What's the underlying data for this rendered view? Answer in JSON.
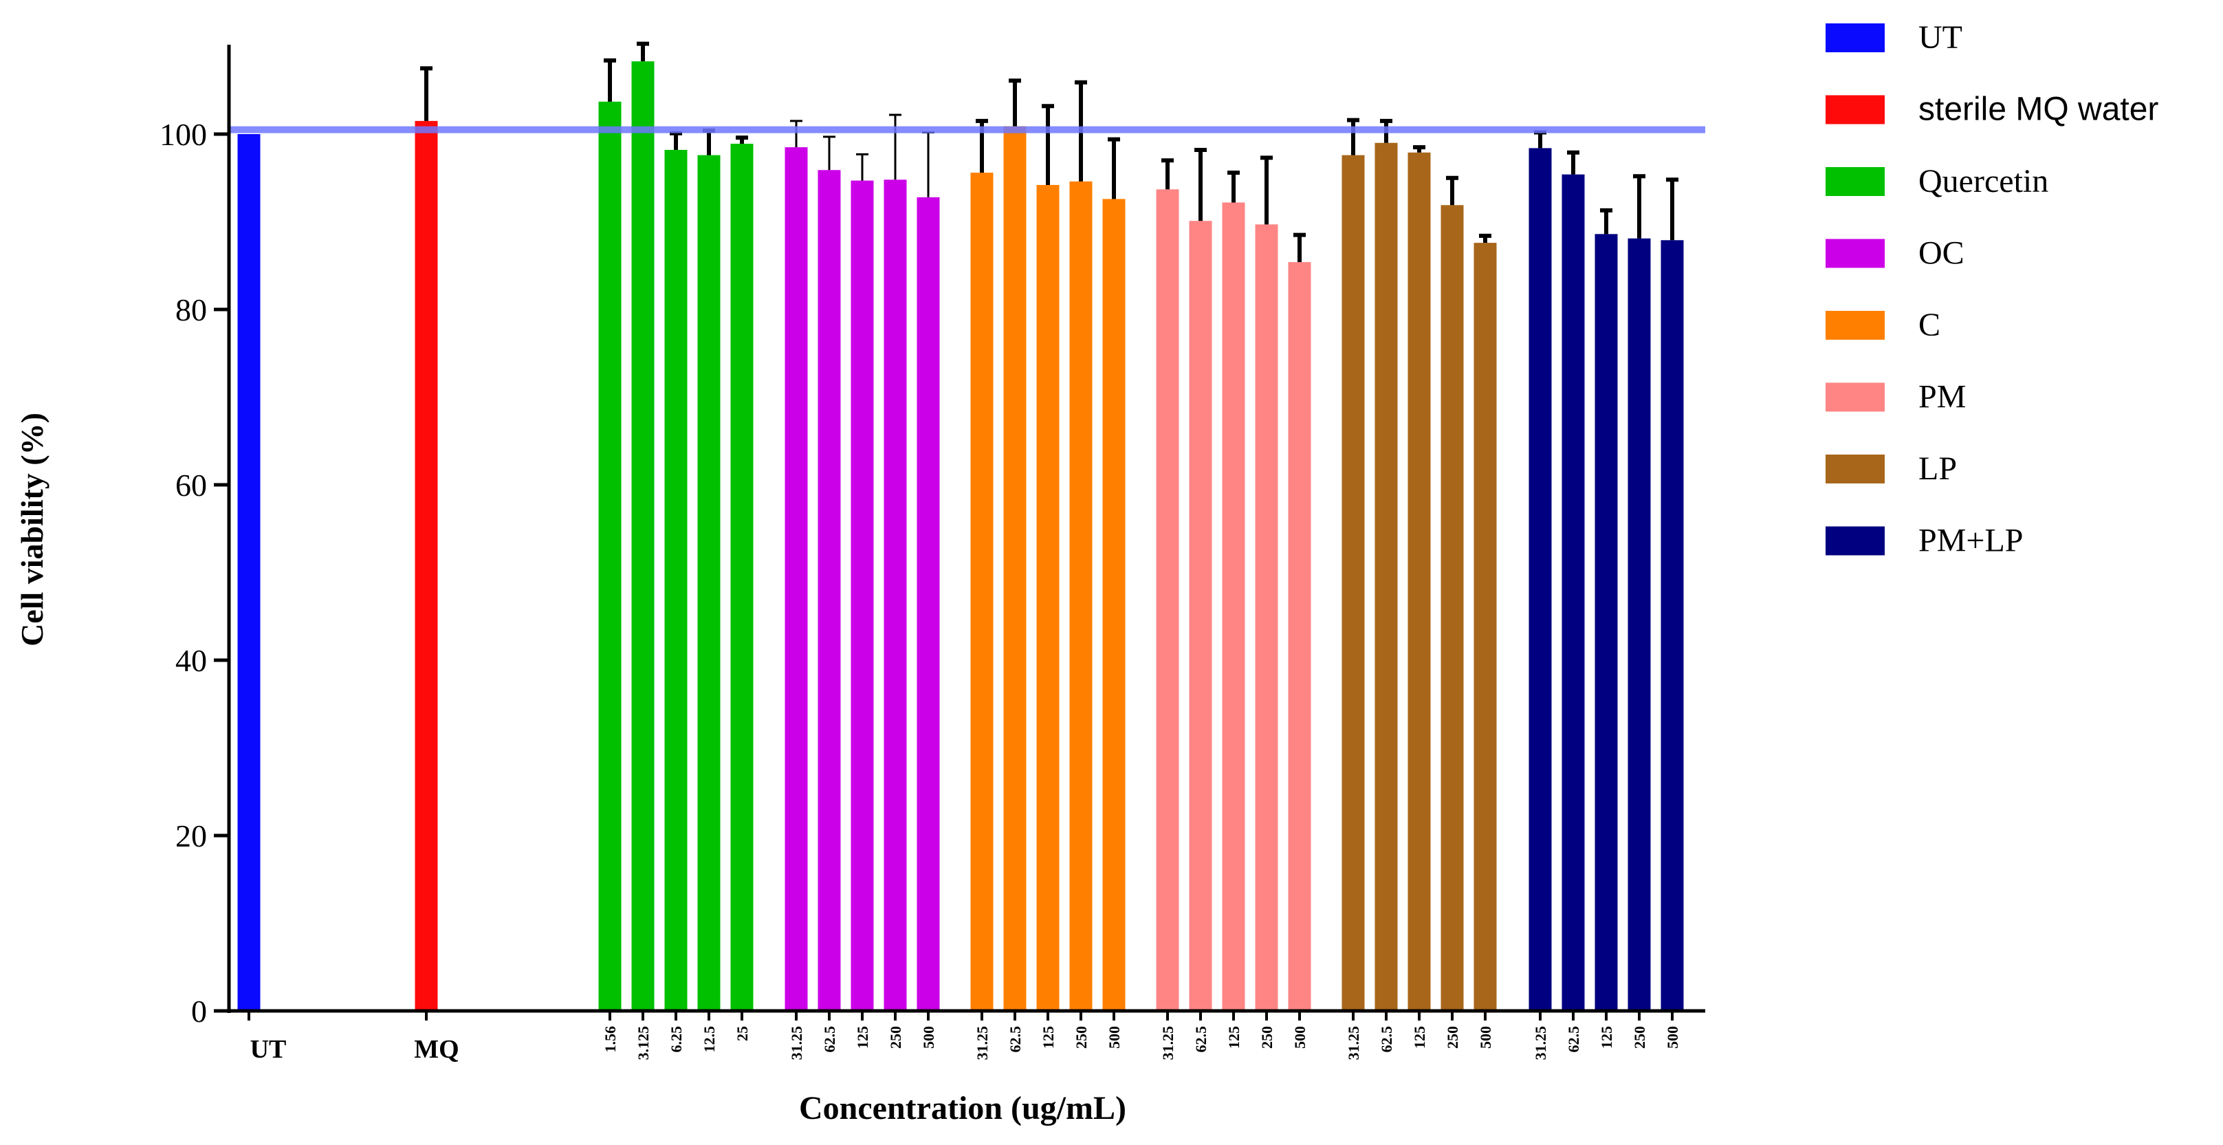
{
  "chart_data": {
    "type": "bar",
    "title": "",
    "xlabel": "Concentration (ug/mL)",
    "ylabel": "Cell viability (%)",
    "ylim": [
      0,
      110
    ],
    "yticks": [
      0,
      20,
      40,
      60,
      80,
      100
    ],
    "reference_line": 100.5,
    "grid": false,
    "legend_position": "right",
    "groups": [
      {
        "name": "UT",
        "legend": "UT",
        "color": "#0a0aff",
        "group_label": "UT",
        "bars": [
          {
            "label": "",
            "value": 100.0,
            "error": 0.0
          }
        ]
      },
      {
        "name": "MQ",
        "legend": "sterile MQ water",
        "color": "#ff0a0a",
        "group_label": "MQ",
        "bars": [
          {
            "label": "",
            "value": 101.5,
            "error": 6.0
          }
        ]
      },
      {
        "name": "Quercetin",
        "legend": "Quercetin",
        "color": "#00c000",
        "group_label": "",
        "bars": [
          {
            "label": "1.56",
            "value": 103.7,
            "error": 4.7
          },
          {
            "label": "3.125",
            "value": 108.3,
            "error": 2.0
          },
          {
            "label": "6.25",
            "value": 98.2,
            "error": 1.9
          },
          {
            "label": "12.5",
            "value": 97.6,
            "error": 2.8
          },
          {
            "label": "25",
            "value": 98.9,
            "error": 0.7
          }
        ]
      },
      {
        "name": "OC",
        "legend": "OC",
        "color": "#cc00e8",
        "group_label": "",
        "bars": [
          {
            "label": "31.25",
            "value": 98.5,
            "error": 3.0
          },
          {
            "label": "62.5",
            "value": 95.9,
            "error": 3.8
          },
          {
            "label": "125",
            "value": 94.7,
            "error": 3.0
          },
          {
            "label": "250",
            "value": 94.8,
            "error": 7.4
          },
          {
            "label": "500",
            "value": 92.8,
            "error": 7.4
          }
        ]
      },
      {
        "name": "C",
        "legend": "C",
        "color": "#ff8000",
        "group_label": "",
        "bars": [
          {
            "label": "31.25",
            "value": 95.6,
            "error": 5.9
          },
          {
            "label": "62.5",
            "value": 100.9,
            "error": 5.2
          },
          {
            "label": "125",
            "value": 94.2,
            "error": 9.0
          },
          {
            "label": "250",
            "value": 94.6,
            "error": 11.3
          },
          {
            "label": "500",
            "value": 92.6,
            "error": 6.8
          }
        ]
      },
      {
        "name": "PM",
        "legend": "PM",
        "color": "#ff8585",
        "group_label": "",
        "bars": [
          {
            "label": "31.25",
            "value": 93.7,
            "error": 3.3
          },
          {
            "label": "62.5",
            "value": 90.1,
            "error": 8.1
          },
          {
            "label": "125",
            "value": 92.2,
            "error": 3.4
          },
          {
            "label": "250",
            "value": 89.7,
            "error": 7.6
          },
          {
            "label": "500",
            "value": 85.4,
            "error": 3.1
          }
        ]
      },
      {
        "name": "LP",
        "legend": "LP",
        "color": "#a8661a",
        "group_label": "",
        "bars": [
          {
            "label": "31.25",
            "value": 97.6,
            "error": 4.0
          },
          {
            "label": "62.5",
            "value": 99.0,
            "error": 2.5
          },
          {
            "label": "125",
            "value": 97.9,
            "error": 0.6
          },
          {
            "label": "250",
            "value": 91.9,
            "error": 3.1
          },
          {
            "label": "500",
            "value": 87.6,
            "error": 0.8
          }
        ]
      },
      {
        "name": "PM+LP",
        "legend": "PM+LP",
        "color": "#000080",
        "group_label": "",
        "bars": [
          {
            "label": "31.25",
            "value": 98.4,
            "error": 1.8
          },
          {
            "label": "62.5",
            "value": 95.4,
            "error": 2.5
          },
          {
            "label": "125",
            "value": 88.6,
            "error": 2.7
          },
          {
            "label": "250",
            "value": 88.1,
            "error": 7.1
          },
          {
            "label": "500",
            "value": 87.9,
            "error": 6.9
          }
        ]
      }
    ]
  }
}
